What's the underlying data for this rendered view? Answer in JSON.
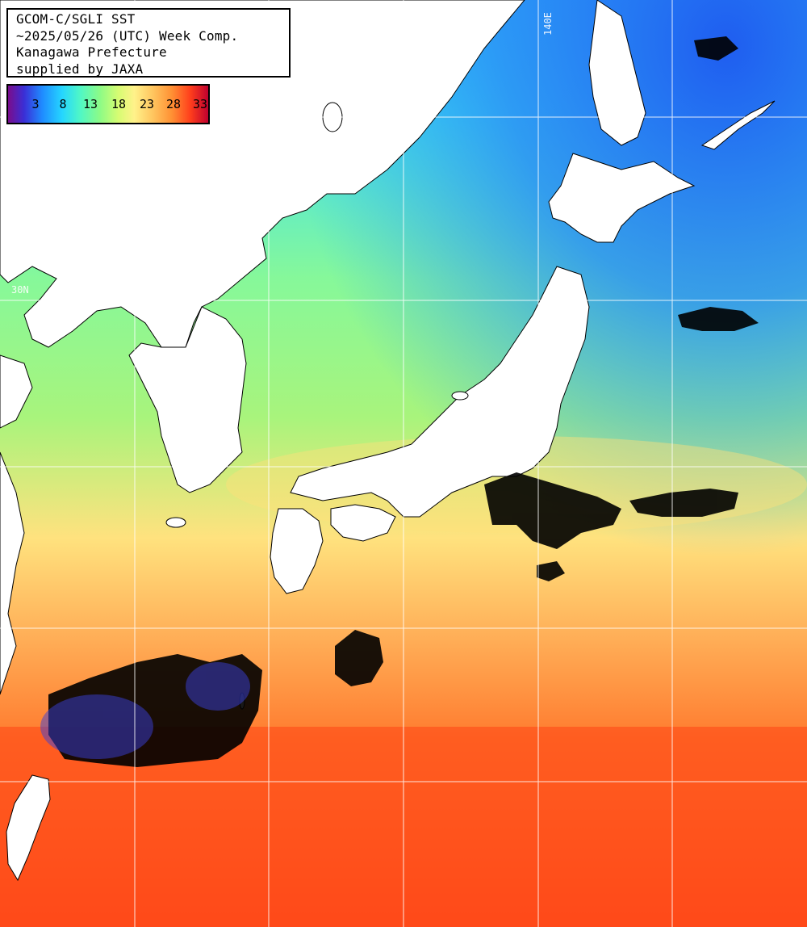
{
  "map": {
    "type": "sea-surface-temperature",
    "region": "Japan and surrounding seas",
    "graticule": {
      "lat_label": "30N",
      "lon_label": "140E"
    }
  },
  "info": {
    "line1": "GCOM-C/SGLI SST",
    "line2": "~2025/05/26 (UTC) Week Comp.",
    "line3": "Kanagawa Prefecture",
    "line4": "supplied by JAXA"
  },
  "legend": {
    "ticks": [
      "3",
      "8",
      "13",
      "18",
      "23",
      "28",
      "33"
    ],
    "colors": [
      "#7a0d8c",
      "#3a2fd6",
      "#1f8bff",
      "#25d6ff",
      "#4ff7c6",
      "#8dfb86",
      "#d6fc72",
      "#fff28a",
      "#ffc25c",
      "#ff8f33",
      "#ff3f1c",
      "#c0002f"
    ]
  },
  "colors": {
    "land": "#ffffff",
    "cloud_mask": "#000000",
    "grid": "#ffffff"
  }
}
